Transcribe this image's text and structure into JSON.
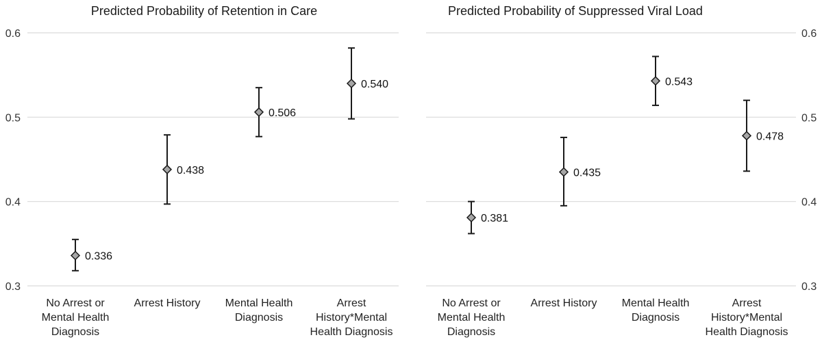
{
  "chart_data": [
    {
      "type": "scatter",
      "title": "Predicted Probability of Retention in Care",
      "xlabel": "",
      "ylabel": "",
      "ylim": [
        0.3,
        0.6
      ],
      "yticks": [
        "0.3",
        "0.4",
        "0.5",
        "0.6"
      ],
      "y_axis_side": "left",
      "grid": true,
      "categories": [
        [
          "No Arrest or",
          "Mental Health",
          "Diagnosis"
        ],
        [
          "Arrest History"
        ],
        [
          "Mental Health",
          "Diagnosis"
        ],
        [
          "Arrest",
          "History*Mental",
          "Health Diagnosis"
        ]
      ],
      "values": [
        0.336,
        0.438,
        0.506,
        0.54
      ],
      "labels": [
        "0.336",
        "0.438",
        "0.506",
        "0.540"
      ],
      "error_low": [
        0.318,
        0.397,
        0.477,
        0.498
      ],
      "error_high": [
        0.355,
        0.479,
        0.535,
        0.582
      ],
      "marker_color": "#a6a6a6"
    },
    {
      "type": "scatter",
      "title": "Predicted Probability of Suppressed Viral Load",
      "xlabel": "",
      "ylabel": "",
      "ylim": [
        0.3,
        0.6
      ],
      "yticks": [
        "0.3",
        "0.4",
        "0.5",
        "0.6"
      ],
      "y_axis_side": "right",
      "grid": true,
      "categories": [
        [
          "No Arrest or",
          "Mental Health",
          "Diagnosis"
        ],
        [
          "Arrest History"
        ],
        [
          "Mental Health",
          "Diagnosis"
        ],
        [
          "Arrest",
          "History*Mental",
          "Health Diagnosis"
        ]
      ],
      "values": [
        0.381,
        0.435,
        0.543,
        0.478
      ],
      "labels": [
        "0.381",
        "0.435",
        "0.543",
        "0.478"
      ],
      "error_low": [
        0.362,
        0.395,
        0.514,
        0.436
      ],
      "error_high": [
        0.4,
        0.476,
        0.572,
        0.52
      ],
      "marker_color": "#a6a6a6"
    }
  ]
}
